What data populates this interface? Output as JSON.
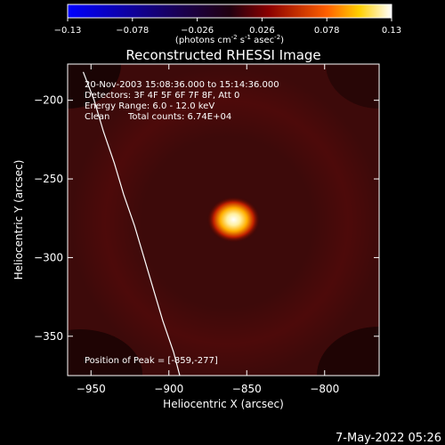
{
  "chart_data": {
    "type": "heatmap",
    "title": "Reconstructed RHESSI Image",
    "xlabel": "Heliocentric X (arcsec)",
    "ylabel": "Heliocentric Y (arcsec)",
    "xlim": [
      -965,
      -765
    ],
    "ylim": [
      -375,
      -177
    ],
    "xticks": [
      -950,
      -900,
      -850,
      -800
    ],
    "yticks": [
      -200,
      -250,
      -300,
      -350
    ],
    "colorbar": {
      "min": -0.13,
      "max": 0.13,
      "ticks": [
        "-0.13",
        "-0.078",
        "-0.026",
        "0.026",
        "0.078",
        "0.13"
      ],
      "units_prefix": "(photons cm",
      "units_exp1": "-2",
      "units_mid": " s",
      "units_exp2": "-1",
      "units_mid2": " asec",
      "units_exp3": "-2",
      "units_suffix": ")"
    },
    "annotations": {
      "time_range": "20-Nov-2003 15:08:36.000 to 15:14:36.000",
      "detectors": "Detectors: 3F 4F 5F 6F 7F 8F, Att 0",
      "energy_range": "Energy Range: 6.0 - 12.0 keV",
      "algorithm": "Clean",
      "total_counts": "Total counts: 6.74E+04",
      "peak_position": "Position of Peak = [-859,-277]"
    },
    "peak": {
      "x": -859,
      "y": -277,
      "value": 0.13
    },
    "limb_curve": [
      [
        -955,
        -182
      ],
      [
        -948,
        -200
      ],
      [
        -942,
        -220
      ],
      [
        -935,
        -240
      ],
      [
        -929,
        -260
      ],
      [
        -922,
        -280
      ],
      [
        -916,
        -300
      ],
      [
        -910,
        -320
      ],
      [
        -904,
        -340
      ],
      [
        -897,
        -360
      ],
      [
        -893,
        -375
      ]
    ],
    "background_level": 0.035,
    "grid": false
  },
  "footer": {
    "date": "7-May-2022 05:26"
  },
  "colors": {
    "background": "#000000",
    "foreground": "#ffffff"
  }
}
